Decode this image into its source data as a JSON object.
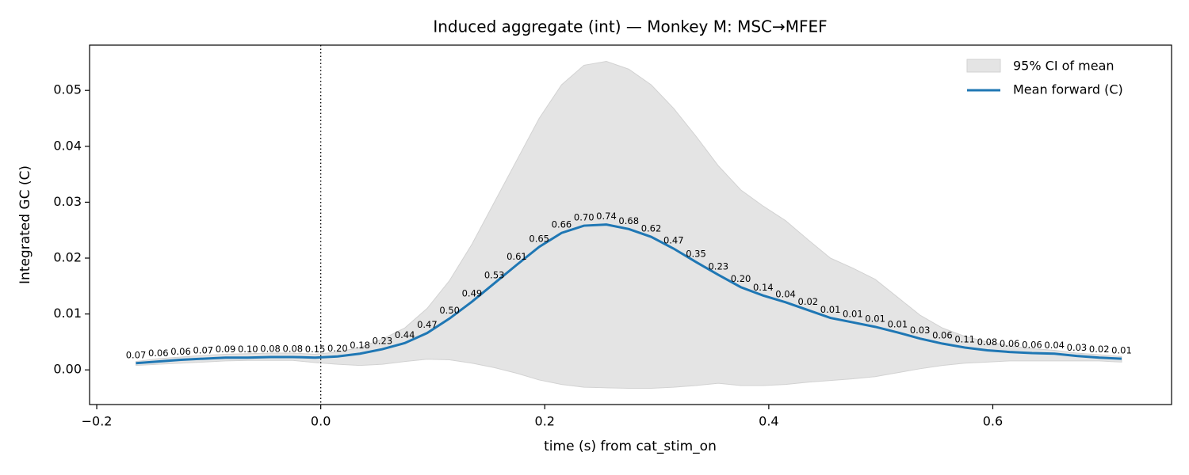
{
  "chart_data": {
    "type": "line",
    "title": "Induced aggregate (int) — Monkey M: MSC→MFEF",
    "x_label": "time (s) from cat_stim_on",
    "y_label": "Integrated GC (C)",
    "x": [
      -0.165,
      -0.145,
      -0.125,
      -0.105,
      -0.085,
      -0.065,
      -0.045,
      -0.025,
      -0.005,
      0.015,
      0.035,
      0.055,
      0.075,
      0.095,
      0.115,
      0.135,
      0.155,
      0.175,
      0.195,
      0.215,
      0.235,
      0.255,
      0.275,
      0.295,
      0.315,
      0.335,
      0.355,
      0.375,
      0.395,
      0.415,
      0.435,
      0.455,
      0.475,
      0.495,
      0.515,
      0.535,
      0.555,
      0.575,
      0.595,
      0.615,
      0.635,
      0.655,
      0.675,
      0.695,
      0.715
    ],
    "series": [
      {
        "name": "Mean forward (C)",
        "color": "#1f77b4",
        "values": [
          0.0012,
          0.0015,
          0.0018,
          0.002,
          0.0022,
          0.0022,
          0.0023,
          0.0023,
          0.0022,
          0.0024,
          0.0029,
          0.0037,
          0.0048,
          0.0066,
          0.0092,
          0.0122,
          0.0155,
          0.0188,
          0.022,
          0.0245,
          0.0258,
          0.026,
          0.0252,
          0.0238,
          0.0217,
          0.0193,
          0.017,
          0.0148,
          0.0133,
          0.0121,
          0.0107,
          0.0093,
          0.0085,
          0.0077,
          0.0067,
          0.0056,
          0.0047,
          0.004,
          0.0035,
          0.0032,
          0.003,
          0.0029,
          0.0025,
          0.0022,
          0.002
        ]
      }
    ],
    "band": {
      "name": "95% CI of mean",
      "color": "#e4e4e4",
      "upper": [
        0.0015,
        0.002,
        0.0023,
        0.0026,
        0.0028,
        0.0029,
        0.003,
        0.003,
        0.0028,
        0.0032,
        0.004,
        0.0055,
        0.0075,
        0.011,
        0.016,
        0.0225,
        0.03,
        0.0375,
        0.045,
        0.051,
        0.0545,
        0.0552,
        0.0538,
        0.051,
        0.0468,
        0.0418,
        0.0365,
        0.0322,
        0.0293,
        0.0267,
        0.0233,
        0.02,
        0.0182,
        0.0162,
        0.013,
        0.0098,
        0.0075,
        0.006,
        0.005,
        0.0043,
        0.0038,
        0.0035,
        0.003,
        0.0027,
        0.0024
      ],
      "lower": [
        0.0008,
        0.001,
        0.0012,
        0.0014,
        0.0016,
        0.0017,
        0.0017,
        0.0017,
        0.0013,
        0.001,
        0.0008,
        0.001,
        0.0015,
        0.0019,
        0.0018,
        0.0012,
        0.0004,
        -0.0006,
        -0.0018,
        -0.0026,
        -0.0031,
        -0.0032,
        -0.0033,
        -0.0033,
        -0.0031,
        -0.0028,
        -0.0024,
        -0.0028,
        -0.0028,
        -0.0026,
        -0.0022,
        -0.0019,
        -0.0016,
        -0.0012,
        -0.0005,
        0.0002,
        0.0008,
        0.0012,
        0.0014,
        0.0016,
        0.0016,
        0.0016,
        0.0016,
        0.0016,
        0.0014
      ]
    },
    "point_labels": [
      "0.07",
      "0.06",
      "0.06",
      "0.07",
      "0.09",
      "0.10",
      "0.08",
      "0.08",
      "0.15",
      "0.20",
      "0.18",
      "0.23",
      "0.44",
      "0.47",
      "0.50",
      "0.49",
      "0.53",
      "0.61",
      "0.65",
      "0.66",
      "0.70",
      "0.74",
      "0.68",
      "0.62",
      "0.47",
      "0.35",
      "0.23",
      "0.20",
      "0.14",
      "0.04",
      "0.02",
      "0.01",
      "0.01",
      "0.01",
      "0.01",
      "0.03",
      "0.06",
      "0.11",
      "0.08",
      "0.06",
      "0.06",
      "0.04",
      "0.03",
      "0.02",
      "0.01"
    ],
    "vline": 0,
    "xlim": [
      -0.2064,
      0.7596
    ],
    "ylim": [
      -0.0062,
      0.0581
    ],
    "xticks": [
      {
        "value": -0.2,
        "label": "−0.2"
      },
      {
        "value": 0,
        "label": "0.0"
      },
      0.2,
      0.4,
      0.6
    ],
    "yticks": [
      {
        "value": 0,
        "label": "0.00"
      },
      {
        "value": 0.01,
        "label": "0.01"
      },
      {
        "value": 0.02,
        "label": "0.02"
      },
      {
        "value": 0.03,
        "label": "0.03"
      },
      {
        "value": 0.04,
        "label": "0.04"
      },
      {
        "value": 0.05,
        "label": "0.05"
      }
    ],
    "legend": "upper right",
    "grid": false
  }
}
